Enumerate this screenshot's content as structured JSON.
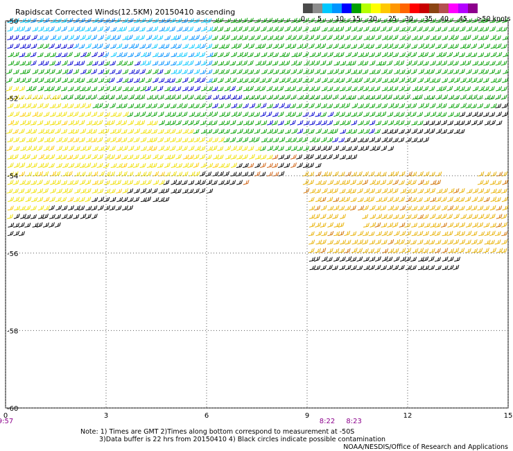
{
  "chart_data": {
    "type": "scatter",
    "title": "Rapidscat Corrected Winds(12.5KM) 20150410 ascending",
    "xlabel": "",
    "ylabel": "",
    "x_ticks": [
      "0",
      "3",
      "6",
      "9",
      "12",
      "15"
    ],
    "y_ticks": [
      "-50",
      "-52",
      "-54",
      "-56",
      "-58",
      "-60"
    ],
    "xlim": [
      0,
      15
    ],
    "ylim": [
      -60,
      -50
    ],
    "grid": true,
    "time_labels": [
      {
        "x": 0,
        "text": "9:57"
      },
      {
        "x": 9.6,
        "text": "8:22"
      },
      {
        "x": 10.4,
        "text": "8:23"
      }
    ],
    "legend": {
      "placement": "top-right",
      "colors": [
        "#4a4a4a",
        "#8c8c8c",
        "#00c8ff",
        "#0096ff",
        "#0000ff",
        "#00a000",
        "#b4ff00",
        "#ffff00",
        "#ffc800",
        "#ff9600",
        "#ff6400",
        "#ff0000",
        "#c80000",
        "#8b4513",
        "#b45050",
        "#ff00ff",
        "#b400ff",
        "#8c008c"
      ],
      "labels": [
        "0",
        "5",
        "10",
        "15",
        "20",
        "25",
        "30",
        "35",
        "40",
        "45",
        ">50 knots"
      ]
    },
    "regions": [
      {
        "name": "light-blue band",
        "speed_range_kt": [
          5,
          12
        ],
        "lon": [
          0,
          6
        ],
        "lat": [
          -51.3,
          -50
        ]
      },
      {
        "name": "blue band",
        "speed_range_kt": [
          12,
          18
        ],
        "lon": [
          0,
          11
        ],
        "lat": [
          -52.5,
          -50
        ]
      },
      {
        "name": "green band",
        "speed_range_kt": [
          18,
          22
        ],
        "lon": [
          0,
          15
        ],
        "lat": [
          -53.5,
          -50.5
        ]
      },
      {
        "name": "yellow band",
        "speed_range_kt": [
          22,
          28
        ],
        "lon": [
          0,
          15
        ],
        "lat": [
          -54.8,
          -52
        ]
      },
      {
        "name": "orange band",
        "speed_range_kt": [
          28,
          35
        ],
        "lon": [
          9,
          15
        ],
        "lat": [
          -56.4,
          -52
        ]
      },
      {
        "name": "black (contaminated) band",
        "speed_range_kt": [
          20,
          30
        ],
        "lon": [
          0,
          15
        ],
        "lat": [
          -56.4,
          -52
        ]
      }
    ]
  },
  "notes": {
    "line1": "Note: 1) Times are GMT 2)Times along bottom correspond to measurement at -50S",
    "line2": "3)Data buffer is 22 hrs from 20150410 4) Black circles indicate possible contamination",
    "credit": "NOAA/NESDIS/Office of Research and Applications"
  }
}
